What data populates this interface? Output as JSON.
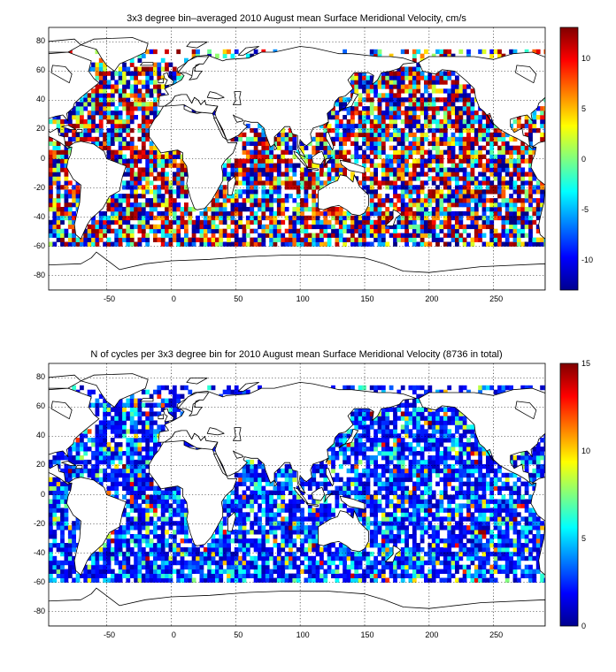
{
  "chart_data": [
    {
      "type": "heatmap",
      "title": "3x3 degree bin–averaged 2010 August mean Surface Meridional Velocity, cm/s",
      "xlim": [
        -95,
        290
      ],
      "ylim": [
        -90,
        90
      ],
      "xticks": [
        "-50",
        "0",
        "50",
        "100",
        "150",
        "200",
        "250"
      ],
      "yticks": [
        "80",
        "60",
        "40",
        "20",
        "0",
        "-20",
        "-40",
        "-60",
        "-80"
      ],
      "colorbar": {
        "min": -13,
        "max": 13,
        "ticks": [
          "10",
          "5",
          "0",
          "-5",
          "-10"
        ],
        "colormap": "jet"
      },
      "bin_size_deg": 3,
      "lat_range_of_data": [
        -60,
        75
      ],
      "grid": true
    },
    {
      "type": "heatmap",
      "title": "N of cycles per 3x3 degree bin for 2010 August mean Surface Meridional Velocity (8736 in total)",
      "xlim": [
        -95,
        290
      ],
      "ylim": [
        -90,
        90
      ],
      "xticks": [
        "-50",
        "0",
        "50",
        "100",
        "150",
        "200",
        "250"
      ],
      "yticks": [
        "80",
        "60",
        "40",
        "20",
        "0",
        "-20",
        "-40",
        "-60",
        "-80"
      ],
      "colorbar": {
        "min": 0,
        "max": 15,
        "ticks": [
          "15",
          "10",
          "5",
          "0"
        ],
        "colormap": "jet"
      },
      "bin_size_deg": 3,
      "lat_range_of_data": [
        -60,
        75
      ],
      "grid": true
    }
  ]
}
